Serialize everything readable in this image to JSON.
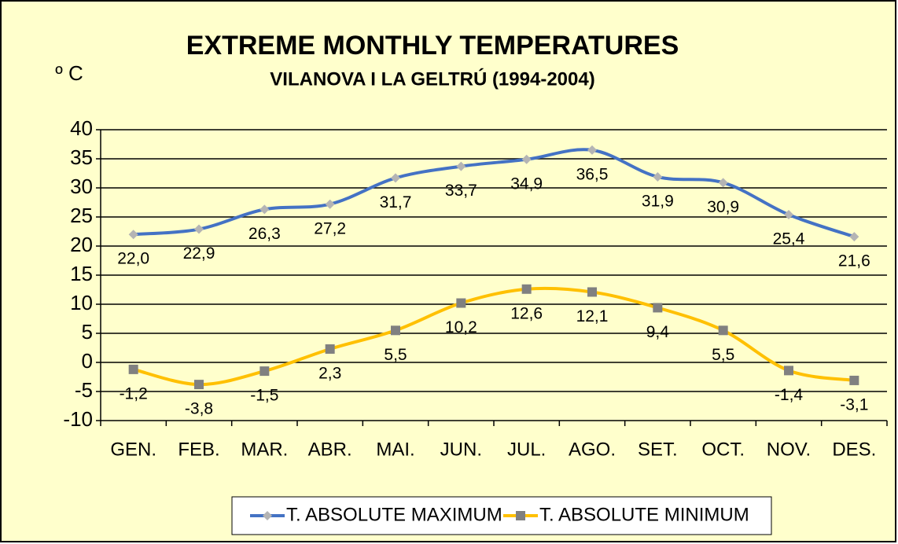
{
  "chart_data": {
    "type": "line",
    "title": "EXTREME MONTHLY TEMPERATURES",
    "subtitle": "VILANOVA I LA GELTRÚ (1994-2004)",
    "y_label": "º C",
    "categories": [
      "GEN.",
      "FEB.",
      "MAR.",
      "ABR.",
      "MAI.",
      "JUN.",
      "JUL.",
      "AGO.",
      "SET.",
      "OCT.",
      "NOV.",
      "DES."
    ],
    "series": [
      {
        "name": "T. ABSOLUTE MAXIMUM",
        "color": "#4472c4",
        "marker": "diamond",
        "marker_color": "#b4b4b4",
        "values": [
          22.0,
          22.9,
          26.3,
          27.2,
          31.7,
          33.7,
          34.9,
          36.5,
          31.9,
          30.9,
          25.4,
          21.6
        ],
        "value_labels": [
          "22,0",
          "22,9",
          "26,3",
          "27,2",
          "31,7",
          "33,7",
          "34,9",
          "36,5",
          "31,9",
          "30,9",
          "25,4",
          "21,6"
        ]
      },
      {
        "name": "T. ABSOLUTE MINIMUM",
        "color": "#ffc000",
        "marker": "square",
        "marker_color": "#808080",
        "values": [
          -1.2,
          -3.8,
          -1.5,
          2.3,
          5.5,
          10.2,
          12.6,
          12.1,
          9.4,
          5.5,
          -1.4,
          -3.1
        ],
        "value_labels": [
          "-1,2",
          "-3,8",
          "-1,5",
          "2,3",
          "5,5",
          "10,2",
          "12,6",
          "12,1",
          "9,4",
          "5,5",
          "-1,4",
          "-3,1"
        ]
      }
    ],
    "ylim": [
      -10,
      40
    ],
    "yticks": [
      -10,
      -5,
      0,
      5,
      10,
      15,
      20,
      25,
      30,
      35,
      40
    ],
    "grid": true,
    "legend": "bottom"
  }
}
